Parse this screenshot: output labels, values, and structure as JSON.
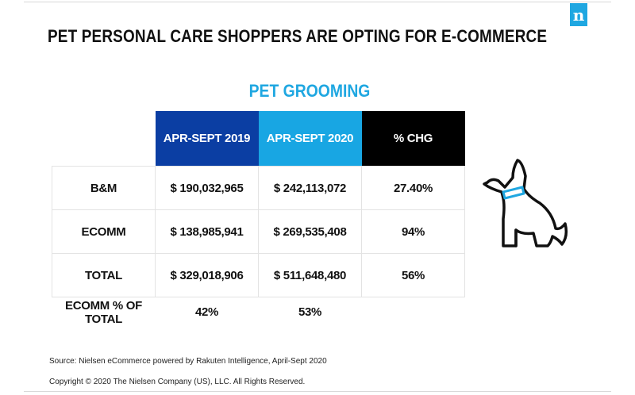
{
  "brand": {
    "logo_letter": "n",
    "color": "#1fa7e1"
  },
  "title": "PET PERSONAL CARE SHOPPERS ARE OPTING FOR E-COMMERCE",
  "chart_data": {
    "type": "table",
    "title": "PET GROOMING",
    "columns": [
      "APR-SEPT 2019",
      "APR-SEPT 2020",
      "% CHG"
    ],
    "column_colors": [
      "#0b3ea3",
      "#18a6e3",
      "#000000"
    ],
    "rows": [
      {
        "label": "B&M",
        "cells": [
          "$ 190,032,965",
          "$ 242,113,072",
          "27.40%"
        ]
      },
      {
        "label": "ECOMM",
        "cells": [
          "$ 138,985,941",
          "$ 269,535,408",
          "94%"
        ]
      },
      {
        "label": "TOTAL",
        "cells": [
          "$ 329,018,906",
          "$ 511,648,480",
          "56%"
        ]
      }
    ],
    "footer_row": {
      "label": "ECOMM % OF TOTAL",
      "cells": [
        "42%",
        "53%",
        ""
      ]
    }
  },
  "illustration": {
    "icon": "dog-with-collar-icon",
    "collar_color": "#1fa7e1"
  },
  "source": "Source: Nielsen eCommerce powered by Rakuten Intelligence, April-Sept 2020",
  "copyright": "Copyright © 2020 The Nielsen Company (US), LLC. All Rights Reserved."
}
